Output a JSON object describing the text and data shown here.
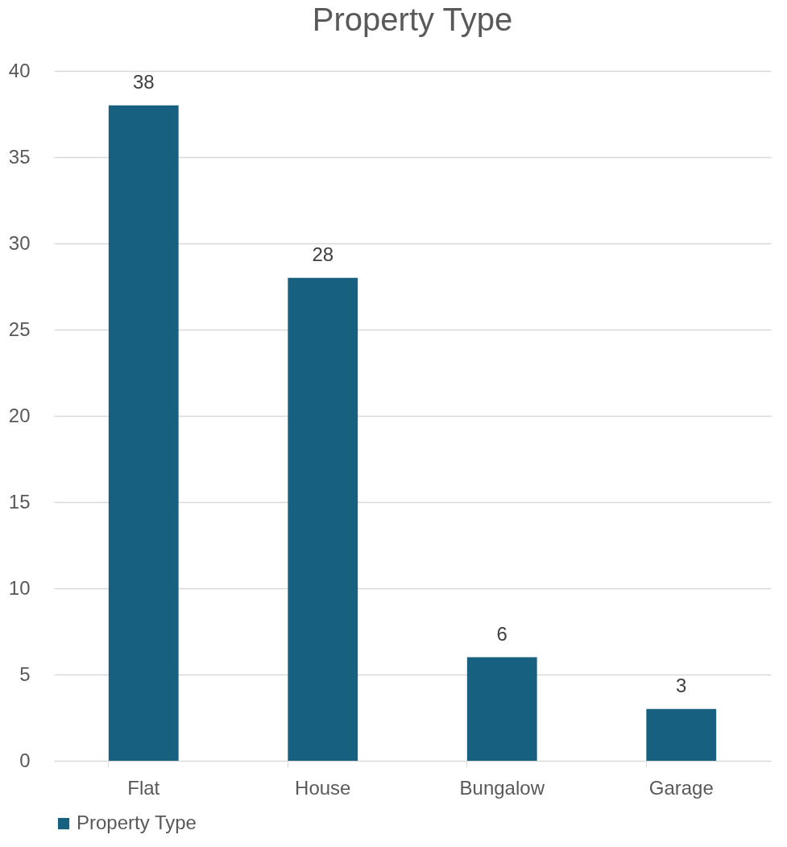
{
  "chart_data": {
    "type": "bar",
    "title": "Property Type",
    "categories": [
      "Flat",
      "House",
      "Bungalow",
      "Garage"
    ],
    "series": [
      {
        "name": "Property Type",
        "color": "#17607f",
        "values": [
          38,
          28,
          6,
          3
        ]
      }
    ],
    "ylim": [
      0,
      40
    ],
    "yticks": [
      0,
      5,
      10,
      15,
      20,
      25,
      30,
      35,
      40
    ],
    "grid": "y",
    "legend": "bottom",
    "data_labels": true
  }
}
